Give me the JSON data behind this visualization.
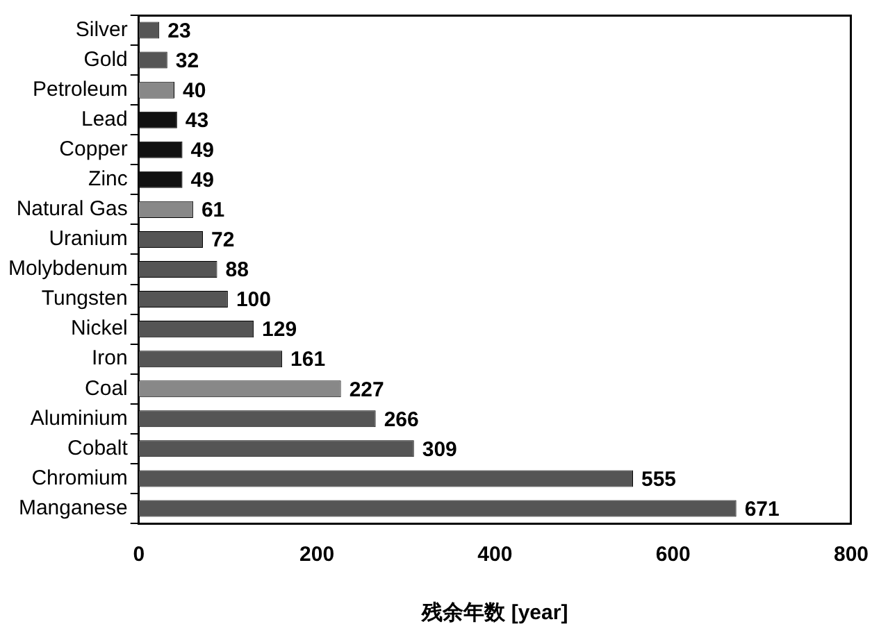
{
  "chart_data": {
    "type": "bar",
    "orientation": "horizontal",
    "xlabel": "残余年数 [year]",
    "categories": [
      "Silver",
      "Gold",
      "Petroleum",
      "Lead",
      "Copper",
      "Zinc",
      "Natural Gas",
      "Uranium",
      "Molybdenum",
      "Tungsten",
      "Nickel",
      "Iron",
      "Coal",
      "Aluminium",
      "Cobalt",
      "Chromium",
      "Manganese"
    ],
    "values": [
      23,
      32,
      40,
      43,
      49,
      49,
      61,
      72,
      88,
      100,
      129,
      161,
      227,
      266,
      309,
      555,
      671
    ],
    "colors": [
      "#555555",
      "#555555",
      "#888888",
      "#111111",
      "#111111",
      "#111111",
      "#888888",
      "#555555",
      "#555555",
      "#555555",
      "#555555",
      "#555555",
      "#888888",
      "#555555",
      "#555555",
      "#555555",
      "#555555"
    ],
    "xlim": [
      0,
      800
    ],
    "xticks": [
      0,
      200,
      400,
      600,
      800
    ],
    "grid": false,
    "legend": false,
    "data_labels": true
  }
}
